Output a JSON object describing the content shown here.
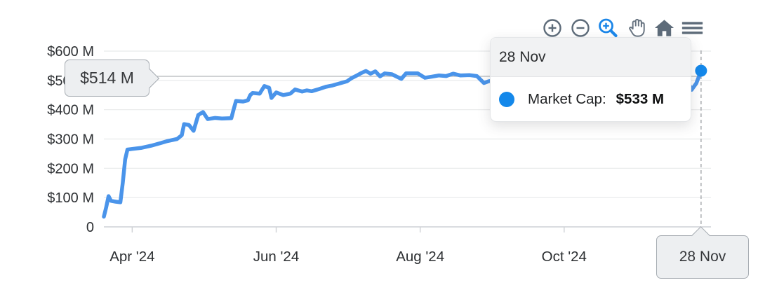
{
  "colors": {
    "line": "#4a94ea",
    "marker": "#1488ea",
    "grid": "#e7e9ea",
    "axis_line": "#ced1d5",
    "spike": "#a9acb0",
    "toolbar_icon": "#5d6b79",
    "toolbar_active": "#1b86e8",
    "tick_label": "#2e3134"
  },
  "toolbar": {
    "icons": [
      {
        "name": "zoom-in"
      },
      {
        "name": "zoom-out"
      },
      {
        "name": "box-zoom",
        "active": true
      },
      {
        "name": "pan"
      },
      {
        "name": "reset-home"
      },
      {
        "name": "menu"
      }
    ]
  },
  "tooltip": {
    "date": "28 Nov",
    "series_label": "Market Cap:",
    "value": "$533 M"
  },
  "cursor_labels": {
    "y_label": "$514 M",
    "x_label": "28 Nov"
  },
  "chart_data": {
    "type": "line",
    "title": "",
    "xlabel": "",
    "ylabel": "",
    "x_unit": "day-index (0 = leftmost point, ticks mark month starts of 2024)",
    "xlim": [
      0,
      257.2
    ],
    "ylim": [
      0,
      600
    ],
    "grid": true,
    "y_ticks": [
      {
        "value": 600,
        "label": "$600 M"
      },
      {
        "value": 500,
        "label": "$500 M"
      },
      {
        "value": 400,
        "label": "$400 M"
      },
      {
        "value": 300,
        "label": "$300 M"
      },
      {
        "value": 200,
        "label": "$200 M"
      },
      {
        "value": 100,
        "label": "$100 M"
      },
      {
        "value": 0,
        "label": "0"
      }
    ],
    "x_ticks": [
      {
        "day": 12,
        "label": "Apr '24"
      },
      {
        "day": 73,
        "label": "Jun '24"
      },
      {
        "day": 134,
        "label": "Aug '24"
      },
      {
        "day": 195,
        "label": "Oct '24"
      }
    ],
    "cursor": {
      "day": 253,
      "y_value": 514
    },
    "series": [
      {
        "name": "Market Cap",
        "unit": "$M",
        "end_point": {
          "date_label": "28 Nov",
          "value": 533
        },
        "points": [
          [
            0,
            35
          ],
          [
            1,
            68
          ],
          [
            2,
            105
          ],
          [
            3,
            89
          ],
          [
            5,
            86
          ],
          [
            7,
            84
          ],
          [
            8,
            150
          ],
          [
            9,
            230
          ],
          [
            10,
            264
          ],
          [
            12,
            266
          ],
          [
            16,
            270
          ],
          [
            20,
            277
          ],
          [
            24,
            286
          ],
          [
            27,
            293
          ],
          [
            31,
            300
          ],
          [
            33,
            313
          ],
          [
            34,
            351
          ],
          [
            36,
            348
          ],
          [
            38,
            328
          ],
          [
            40,
            382
          ],
          [
            42,
            392
          ],
          [
            44,
            368
          ],
          [
            47,
            372
          ],
          [
            50,
            370
          ],
          [
            54,
            371
          ],
          [
            55,
            402
          ],
          [
            56,
            430
          ],
          [
            59,
            428
          ],
          [
            61,
            432
          ],
          [
            62,
            450
          ],
          [
            63,
            457
          ],
          [
            66,
            455
          ],
          [
            68,
            481
          ],
          [
            70,
            475
          ],
          [
            71,
            440
          ],
          [
            73,
            459
          ],
          [
            76,
            450
          ],
          [
            79,
            455
          ],
          [
            81,
            469
          ],
          [
            84,
            462
          ],
          [
            86,
            466
          ],
          [
            88,
            463
          ],
          [
            91,
            470
          ],
          [
            94,
            478
          ],
          [
            97,
            483
          ],
          [
            100,
            490
          ],
          [
            103,
            497
          ],
          [
            105,
            508
          ],
          [
            107,
            516
          ],
          [
            109,
            525
          ],
          [
            111,
            532
          ],
          [
            113,
            523
          ],
          [
            115,
            531
          ],
          [
            117,
            514
          ],
          [
            119,
            524
          ],
          [
            122,
            521
          ],
          [
            126,
            505
          ],
          [
            128,
            524
          ],
          [
            133,
            524
          ],
          [
            136,
            509
          ],
          [
            139,
            513
          ],
          [
            142,
            517
          ],
          [
            145,
            515
          ],
          [
            148,
            523
          ],
          [
            151,
            517
          ],
          [
            155,
            518
          ],
          [
            158,
            515
          ],
          [
            161,
            491
          ],
          [
            163,
            497
          ],
          [
            167,
            503
          ],
          [
            172,
            508
          ],
          [
            178,
            512
          ],
          [
            184,
            509
          ],
          [
            190,
            514
          ],
          [
            196,
            512
          ],
          [
            202,
            517
          ],
          [
            208,
            514
          ],
          [
            214,
            518
          ],
          [
            220,
            513
          ],
          [
            226,
            516
          ],
          [
            232,
            514
          ],
          [
            238,
            512
          ],
          [
            243,
            510
          ],
          [
            246,
            520
          ],
          [
            249,
            468
          ],
          [
            251,
            490
          ],
          [
            253,
            533
          ]
        ]
      }
    ],
    "legend": false
  }
}
